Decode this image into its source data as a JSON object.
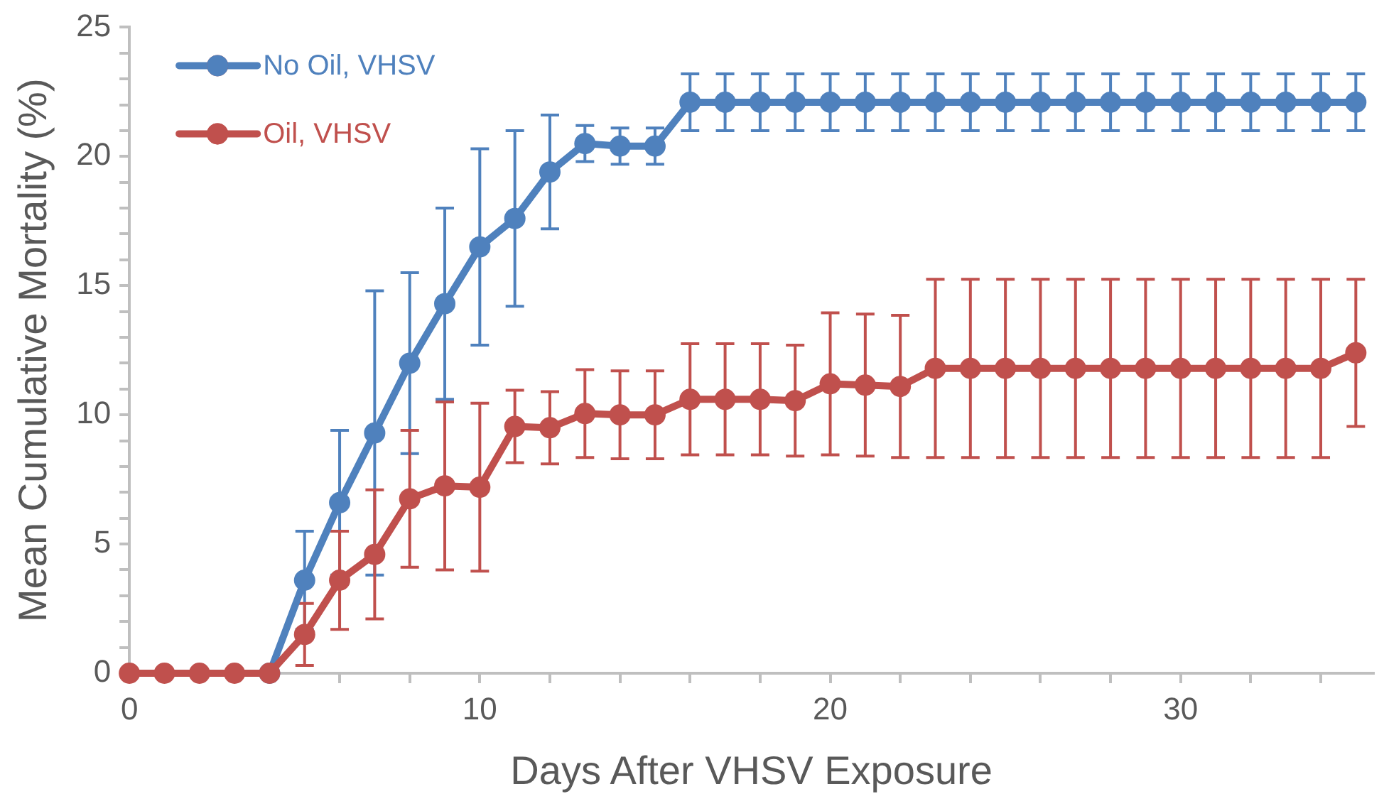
{
  "chart_data": {
    "type": "line",
    "xlabel": "Days After VHSV Exposure",
    "ylabel": "Mean Cumulative Mortality (%)",
    "x": [
      0,
      1,
      2,
      3,
      4,
      5,
      6,
      7,
      8,
      9,
      10,
      11,
      12,
      13,
      14,
      15,
      16,
      17,
      18,
      19,
      20,
      21,
      22,
      23,
      24,
      25,
      26,
      27,
      28,
      29,
      30,
      31,
      32,
      33,
      34,
      35
    ],
    "series": [
      {
        "name": "No Oil, VHSV",
        "color": "#4f81bd",
        "values": [
          null,
          null,
          null,
          null,
          0,
          3.6,
          6.6,
          9.3,
          12.0,
          14.3,
          16.5,
          17.6,
          19.4,
          20.5,
          20.4,
          20.4,
          22.1,
          22.1,
          22.1,
          22.1,
          22.1,
          22.1,
          22.1,
          22.1,
          22.1,
          22.1,
          22.1,
          22.1,
          22.1,
          22.1,
          22.1,
          22.1,
          22.1,
          22.1,
          22.1,
          22.1
        ],
        "errors": [
          null,
          null,
          null,
          null,
          null,
          1.9,
          2.8,
          5.5,
          3.5,
          3.7,
          3.8,
          3.4,
          2.2,
          0.7,
          0.7,
          0.7,
          1.1,
          1.1,
          1.1,
          1.1,
          1.1,
          1.1,
          1.1,
          1.1,
          1.1,
          1.1,
          1.1,
          1.1,
          1.1,
          1.1,
          1.1,
          1.1,
          1.1,
          1.1,
          1.1,
          1.1
        ]
      },
      {
        "name": "Oil, VHSV",
        "color": "#c0504d",
        "values": [
          0,
          0,
          0,
          0,
          0,
          1.5,
          3.6,
          4.6,
          6.75,
          7.25,
          7.2,
          9.55,
          9.5,
          10.05,
          10.0,
          10.0,
          10.6,
          10.6,
          10.6,
          10.55,
          11.2,
          11.15,
          11.1,
          11.8,
          11.8,
          11.8,
          11.8,
          11.8,
          11.8,
          11.8,
          11.8,
          11.8,
          11.8,
          11.8,
          11.8,
          12.4
        ],
        "errors": [
          null,
          null,
          null,
          null,
          null,
          1.2,
          1.9,
          2.5,
          2.65,
          3.25,
          3.25,
          1.4,
          1.4,
          1.7,
          1.7,
          1.7,
          2.15,
          2.15,
          2.15,
          2.15,
          2.75,
          2.75,
          2.75,
          3.45,
          3.45,
          3.45,
          3.45,
          3.45,
          3.45,
          3.45,
          3.45,
          3.45,
          3.45,
          3.45,
          3.45,
          2.85
        ]
      }
    ],
    "xlim": [
      0,
      35.5
    ],
    "xticks": [
      0,
      {
        "value": 2,
        "label": null
      },
      {
        "value": 4,
        "label": null
      },
      {
        "value": 6,
        "label": null
      },
      {
        "value": 8,
        "label": null
      },
      10,
      {
        "value": 12,
        "label": null
      },
      {
        "value": 14,
        "label": null
      },
      {
        "value": 16,
        "label": null
      },
      {
        "value": 18,
        "label": null
      },
      20,
      {
        "value": 22,
        "label": null
      },
      {
        "value": 24,
        "label": null
      },
      {
        "value": 26,
        "label": null
      },
      {
        "value": 28,
        "label": null
      },
      30,
      {
        "value": 32,
        "label": null
      },
      {
        "value": 34,
        "label": null
      }
    ],
    "ylim": [
      0,
      25
    ],
    "yticks": [
      0,
      {
        "value": 1,
        "label": null
      },
      {
        "value": 2,
        "label": null
      },
      {
        "value": 3,
        "label": null
      },
      {
        "value": 4,
        "label": null
      },
      5,
      {
        "value": 6,
        "label": null
      },
      {
        "value": 7,
        "label": null
      },
      {
        "value": 8,
        "label": null
      },
      {
        "value": 9,
        "label": null
      },
      10,
      {
        "value": 11,
        "label": null
      },
      {
        "value": 12,
        "label": null
      },
      {
        "value": 13,
        "label": null
      },
      {
        "value": 14,
        "label": null
      },
      15,
      {
        "value": 16,
        "label": null
      },
      {
        "value": 17,
        "label": null
      },
      {
        "value": 18,
        "label": null
      },
      {
        "value": 19,
        "label": null
      },
      20,
      {
        "value": 21,
        "label": null
      },
      {
        "value": 22,
        "label": null
      },
      {
        "value": 23,
        "label": null
      },
      {
        "value": 24,
        "label": null
      },
      25
    ],
    "grid": false,
    "legend": "top left",
    "marker": "circle",
    "line_style": "solid"
  }
}
